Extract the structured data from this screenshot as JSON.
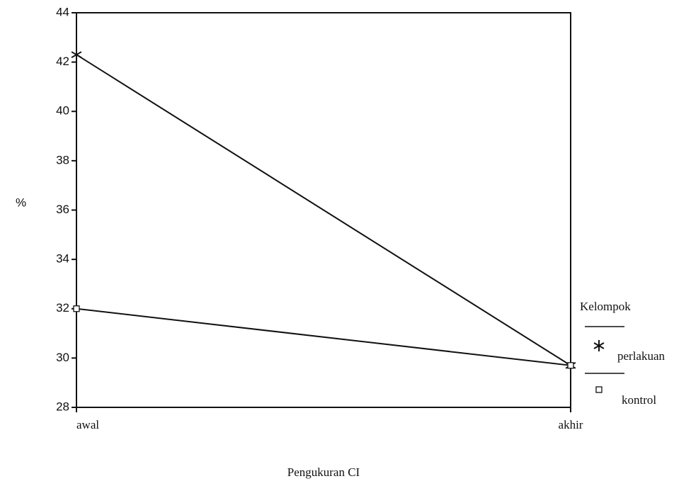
{
  "chart_data": {
    "type": "line",
    "x_label": "Pengukuran CI",
    "y_label": "%",
    "categories": [
      "awal",
      "akhir"
    ],
    "series": [
      {
        "name": "perlakuan",
        "color": "#111111",
        "marker": "asterisk",
        "values": [
          42.3,
          29.7
        ]
      },
      {
        "name": "kontrol",
        "color": "#111111",
        "marker": "square",
        "values": [
          32,
          29.7
        ]
      }
    ],
    "ylim": [
      28,
      44
    ],
    "yticks": [
      28,
      30,
      32,
      34,
      36,
      38,
      40,
      42,
      44
    ],
    "legend_title": "Kelompok",
    "legend_position": "right"
  }
}
